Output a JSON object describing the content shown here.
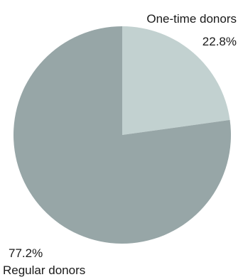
{
  "chart_data": {
    "type": "pie",
    "title": "",
    "start_angle_deg": 0,
    "direction": "clockwise",
    "slices": [
      {
        "name": "One-time donors",
        "value": 22.8,
        "label": "22.8%",
        "color": "#c2d1d0"
      },
      {
        "name": "Regular donors",
        "value": 77.2,
        "label": "77.2%",
        "color": "#97a6a7"
      }
    ],
    "legend": "none"
  }
}
